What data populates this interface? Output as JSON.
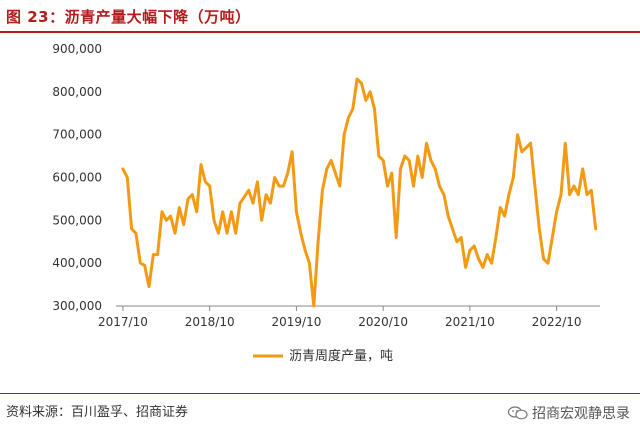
{
  "header": {
    "title": "图 23：沥青产量大幅下降（万吨）"
  },
  "footer": {
    "source": "资料来源：百川盈孚、招商证券",
    "watermark": "招商宏观静思录",
    "watermark_icon": "wechat-icon"
  },
  "colors": {
    "accent": "#b31c1c",
    "series": "#f39a14"
  },
  "chart_data": {
    "type": "line",
    "title": "",
    "xlabel": "",
    "ylabel": "",
    "ylim": [
      300000,
      900000
    ],
    "yticks": [
      300000,
      400000,
      500000,
      600000,
      700000,
      800000,
      900000
    ],
    "ytick_labels": [
      "300,000",
      "400,000",
      "500,000",
      "600,000",
      "700,000",
      "800,000",
      "900,000"
    ],
    "xlim": [
      2017.67,
      2023.25
    ],
    "xticks": [
      2017.75,
      2018.75,
      2019.75,
      2020.75,
      2021.75,
      2022.75
    ],
    "xtick_labels": [
      "2017/10",
      "2018/10",
      "2019/10",
      "2020/10",
      "2021/10",
      "2022/10"
    ],
    "grid": false,
    "legend": "bottom-center",
    "series": [
      {
        "name": "沥青周度产量，吨",
        "x": [
          2017.75,
          2017.8,
          2017.85,
          2017.9,
          2017.95,
          2018.0,
          2018.05,
          2018.1,
          2018.15,
          2018.2,
          2018.25,
          2018.3,
          2018.35,
          2018.4,
          2018.45,
          2018.5,
          2018.55,
          2018.6,
          2018.65,
          2018.7,
          2018.75,
          2018.8,
          2018.85,
          2018.9,
          2018.95,
          2019.0,
          2019.05,
          2019.1,
          2019.15,
          2019.2,
          2019.25,
          2019.3,
          2019.35,
          2019.4,
          2019.45,
          2019.5,
          2019.55,
          2019.6,
          2019.65,
          2019.7,
          2019.75,
          2019.8,
          2019.85,
          2019.9,
          2019.95,
          2020.0,
          2020.05,
          2020.1,
          2020.15,
          2020.2,
          2020.25,
          2020.3,
          2020.35,
          2020.4,
          2020.45,
          2020.5,
          2020.55,
          2020.6,
          2020.65,
          2020.7,
          2020.75,
          2020.8,
          2020.85,
          2020.9,
          2020.95,
          2021.0,
          2021.05,
          2021.1,
          2021.15,
          2021.2,
          2021.25,
          2021.3,
          2021.35,
          2021.4,
          2021.45,
          2021.5,
          2021.55,
          2021.6,
          2021.65,
          2021.7,
          2021.75,
          2021.8,
          2021.85,
          2021.9,
          2021.95,
          2022.0,
          2022.05,
          2022.1,
          2022.15,
          2022.2,
          2022.25,
          2022.3,
          2022.35,
          2022.4,
          2022.45,
          2022.5,
          2022.55,
          2022.6,
          2022.65,
          2022.7,
          2022.75,
          2022.8,
          2022.85,
          2022.9,
          2022.95,
          2023.0,
          2023.05,
          2023.1,
          2023.15,
          2023.2
        ],
        "values": [
          620000,
          600000,
          480000,
          470000,
          400000,
          395000,
          345000,
          420000,
          420000,
          520000,
          500000,
          510000,
          470000,
          530000,
          490000,
          550000,
          560000,
          520000,
          630000,
          590000,
          580000,
          500000,
          470000,
          520000,
          470000,
          520000,
          470000,
          540000,
          555000,
          570000,
          540000,
          590000,
          500000,
          560000,
          540000,
          600000,
          580000,
          580000,
          610000,
          660000,
          520000,
          470000,
          430000,
          400000,
          300000,
          450000,
          570000,
          620000,
          640000,
          610000,
          580000,
          700000,
          740000,
          760000,
          830000,
          820000,
          780000,
          800000,
          760000,
          650000,
          640000,
          580000,
          610000,
          460000,
          620000,
          650000,
          640000,
          580000,
          650000,
          600000,
          680000,
          640000,
          620000,
          580000,
          560000,
          510000,
          480000,
          450000,
          460000,
          390000,
          430000,
          440000,
          410000,
          390000,
          420000,
          400000,
          460000,
          530000,
          510000,
          560000,
          600000,
          700000,
          660000,
          670000,
          680000,
          580000,
          480000,
          410000,
          400000,
          460000,
          520000,
          560000,
          680000,
          560000,
          580000,
          560000,
          620000,
          560000,
          570000,
          480000
        ]
      }
    ]
  }
}
